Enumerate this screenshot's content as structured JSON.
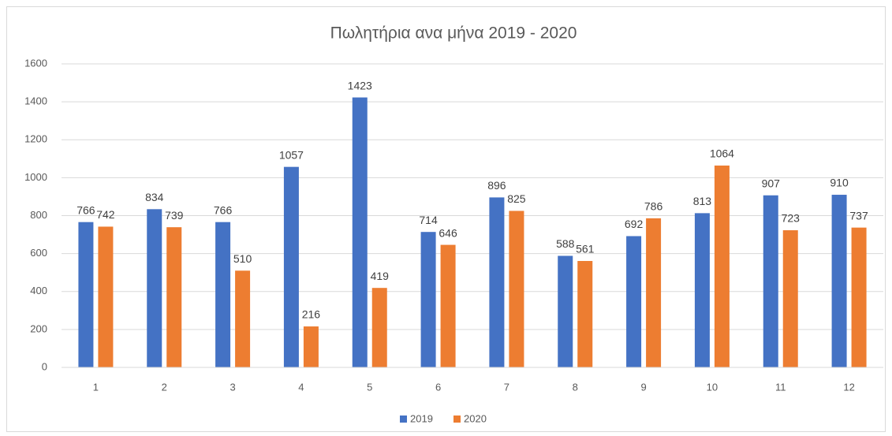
{
  "chart_data": {
    "type": "bar",
    "title": "Πωλητήρια ανα μήνα 2019 - 2020",
    "categories": [
      "1",
      "2",
      "3",
      "4",
      "5",
      "6",
      "7",
      "8",
      "9",
      "10",
      "11",
      "12"
    ],
    "series": [
      {
        "name": "2019",
        "color": "#4472c4",
        "values": [
          766,
          834,
          766,
          1057,
          1423,
          714,
          896,
          588,
          692,
          813,
          907,
          910
        ]
      },
      {
        "name": "2020",
        "color": "#ed7d31",
        "values": [
          742,
          739,
          510,
          216,
          419,
          646,
          825,
          561,
          786,
          1064,
          723,
          737
        ]
      }
    ],
    "ylim": [
      0,
      1600
    ],
    "yticks": [
      0,
      200,
      400,
      600,
      800,
      1000,
      1200,
      1400,
      1600
    ],
    "grid": true,
    "legend": "bottom"
  }
}
